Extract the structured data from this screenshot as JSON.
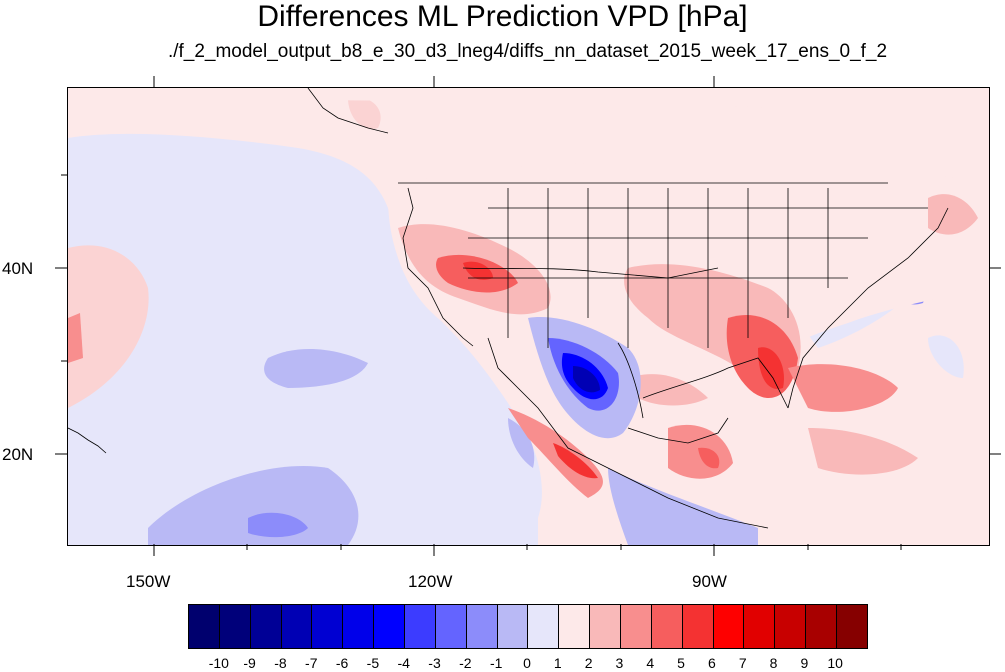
{
  "title": "Differences ML Prediction VPD [hPa]",
  "subtitle": "./f_2_model_output_b8_e_30_d3_lneg4/diffs_nn_dataset_2015_week_17_ens_0_f_2",
  "lon_labels": [
    "150W",
    "120W",
    "90W"
  ],
  "lat_labels": [
    "40N",
    "20N"
  ],
  "colorbar": {
    "labels": [
      "-10",
      "-9",
      "-8",
      "-7",
      "-6",
      "-5",
      "-4",
      "-3",
      "-2",
      "-1",
      "0",
      "1",
      "2",
      "3",
      "4",
      "5",
      "6",
      "7",
      "8",
      "9",
      "10"
    ],
    "colors": [
      "#00007a",
      "#000096",
      "#0000b4",
      "#0000d2",
      "#0000ea",
      "#0000ff",
      "#3c3cff",
      "#6464ff",
      "#8c8cfa",
      "#b9b9f5",
      "#e6e6fa",
      "#fde9e9",
      "#f9b9b9",
      "#f88e8e",
      "#f65e5e",
      "#f43232",
      "#fe0000",
      "#e10000",
      "#c80000",
      "#a80000",
      "#860000"
    ]
  }
}
